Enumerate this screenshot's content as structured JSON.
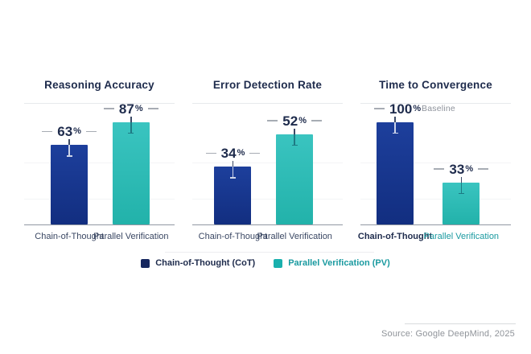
{
  "colors": {
    "background": "#ffffff",
    "cot_bar_top": "#1d3f9c",
    "cot_bar_bottom": "#122e80",
    "pv_bar_top": "#3ac4c0",
    "pv_bar_bottom": "#22b2aa",
    "cot_legend": "#15265e",
    "pv_legend": "#19b0ad",
    "title_text": "#1e2b4c",
    "number_text": "#1e2b4c",
    "category_text": "#3a4763",
    "category_pv_text": "#1a9aa0",
    "dash": "#a7acb4",
    "axis": "#9298a3",
    "gridline": "#f3f4f6",
    "panel_divider": "#e7e9ec",
    "legend_divider": "#ededf0",
    "note_text": "#8d929b",
    "source_text": "#8f9399",
    "source_divider": "#d9dbde",
    "err_on_cot": "rgba(255,255,255,0.78)",
    "err_on_pv": "rgba(9,64,84,0.55)",
    "err_tick": "#3c4a66"
  },
  "chart_data": [
    {
      "type": "bar",
      "title": "Reasoning Accuracy",
      "categories": [
        "Chain-of-Thought",
        "Parallel Verification"
      ],
      "values": [
        63,
        87
      ],
      "unit": "%",
      "ylim": [
        0,
        100
      ],
      "grid": "faint-horizontal",
      "bars": [
        {
          "category": "Chain-of-Thought",
          "series": "cot",
          "value": 63,
          "display": "63",
          "unit": "%",
          "note": "",
          "right_dash": true,
          "category_style": "normal",
          "center_pct": 30,
          "height_pct": 66
        },
        {
          "category": "Parallel Verification",
          "series": "pv",
          "value": 87,
          "display": "87",
          "unit": "%",
          "note": "",
          "right_dash": true,
          "category_style": "normal",
          "center_pct": 71,
          "height_pct": 85
        }
      ]
    },
    {
      "type": "bar",
      "title": "Error Detection Rate",
      "categories": [
        "Chain-of-Thought",
        "Parallel Verification"
      ],
      "values": [
        34,
        52
      ],
      "unit": "%",
      "ylim": [
        0,
        70
      ],
      "grid": "faint-horizontal",
      "bars": [
        {
          "category": "Chain-of-Thought",
          "series": "cot",
          "value": 34,
          "display": "34",
          "unit": "%",
          "note": "",
          "right_dash": true,
          "category_style": "normal",
          "center_pct": 27,
          "height_pct": 48
        },
        {
          "category": "Parallel Verification",
          "series": "pv",
          "value": 52,
          "display": "52",
          "unit": "%",
          "note": "",
          "right_dash": true,
          "category_style": "normal",
          "center_pct": 68,
          "height_pct": 75
        }
      ]
    },
    {
      "type": "bar",
      "title": "Time to Convergence",
      "categories": [
        "Chain-of-Thought",
        "Parallel Verification"
      ],
      "values": [
        100,
        33
      ],
      "unit": "%",
      "ylim": [
        0,
        118
      ],
      "grid": "faint-horizontal",
      "bars": [
        {
          "category": "Chain-of-Thought",
          "series": "cot",
          "value": 100,
          "display": "100",
          "unit": "%",
          "note": "Baseline",
          "right_dash": false,
          "category_style": "bold",
          "center_pct": 23,
          "height_pct": 85
        },
        {
          "category": "Parallel Verification",
          "series": "pv",
          "value": 33,
          "display": "33",
          "unit": "%",
          "note": "",
          "right_dash": true,
          "category_style": "teal",
          "center_pct": 67,
          "height_pct": 35
        }
      ]
    }
  ],
  "legend": {
    "items": [
      {
        "label": "Chain-of-Thought (CoT)",
        "series": "cot"
      },
      {
        "label": "Parallel Verification (PV)",
        "series": "pv"
      }
    ]
  },
  "source": {
    "text": "Source: Google DeepMind, 2025"
  }
}
